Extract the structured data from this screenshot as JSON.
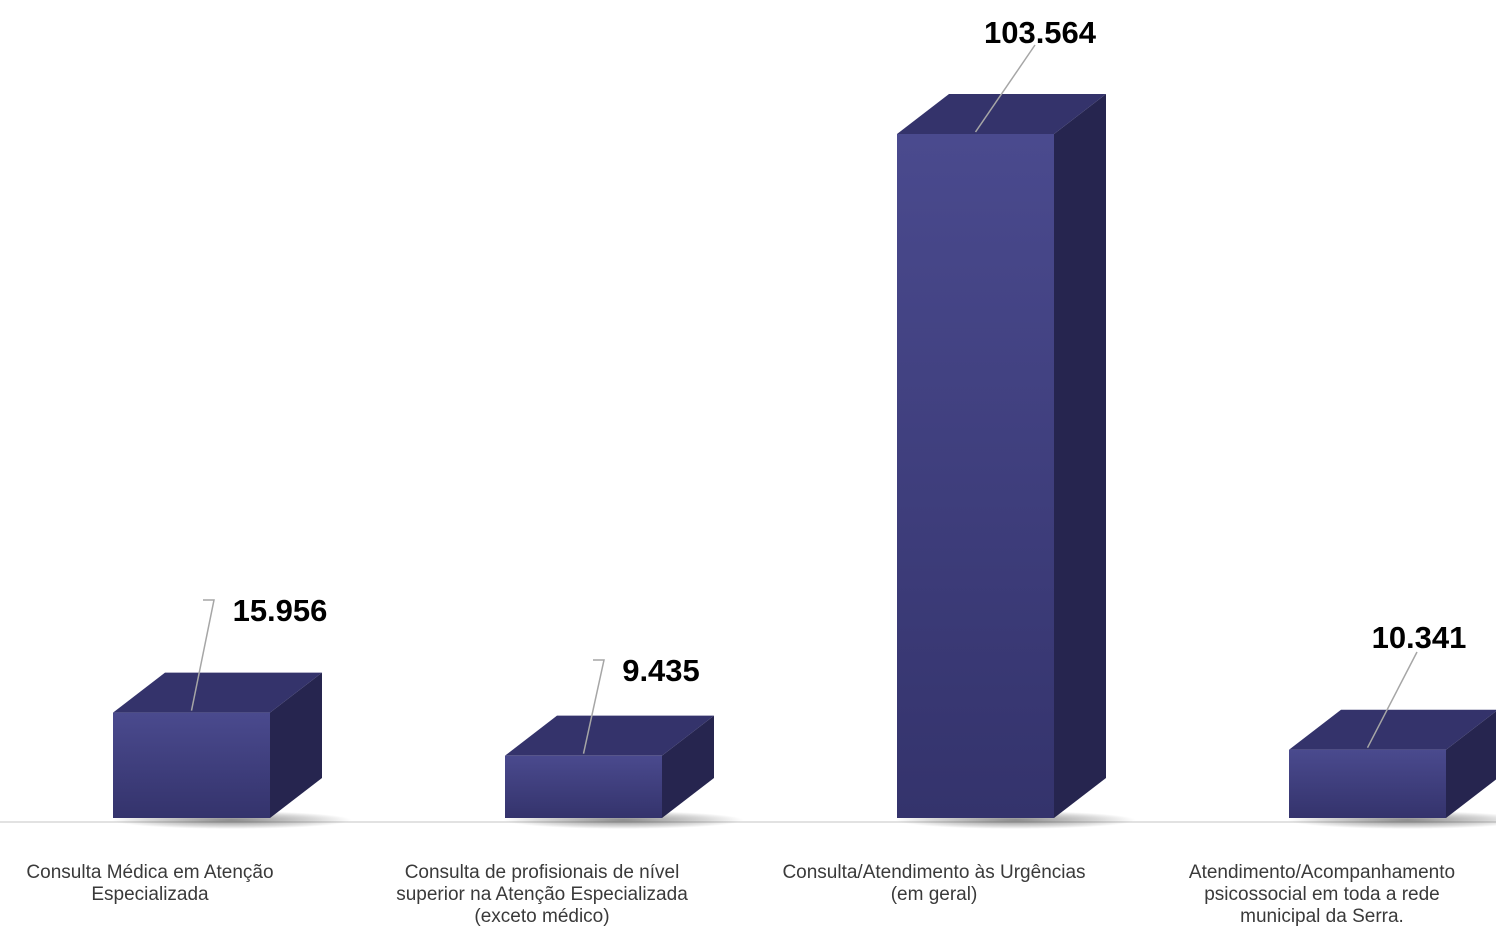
{
  "chart_data": {
    "type": "bar",
    "style": "3d-column",
    "categories": [
      "Consulta Médica em Atenção\nEspecializada",
      "Consulta de profisionais de nível\nsuperior na Atenção Especializada\n(exceto médico)",
      "Consulta/Atendimento às Urgências\n(em geral)",
      "Atendimento/Acompanhamento\npsicossocial em toda a rede\nmunicipal da Serra."
    ],
    "values": [
      15956,
      9435,
      103564,
      10341
    ],
    "data_labels": [
      "15.956",
      "9.435",
      "103.564",
      "10.341"
    ],
    "title": "",
    "xlabel": "",
    "ylabel": "",
    "grid": false,
    "legend": "none",
    "colors": {
      "bar_front": "#41407f",
      "bar_top": "#34336b",
      "bar_side": "#26254f",
      "leader_line": "#a6a6a6",
      "axis_line": "#d9d9d9"
    }
  }
}
